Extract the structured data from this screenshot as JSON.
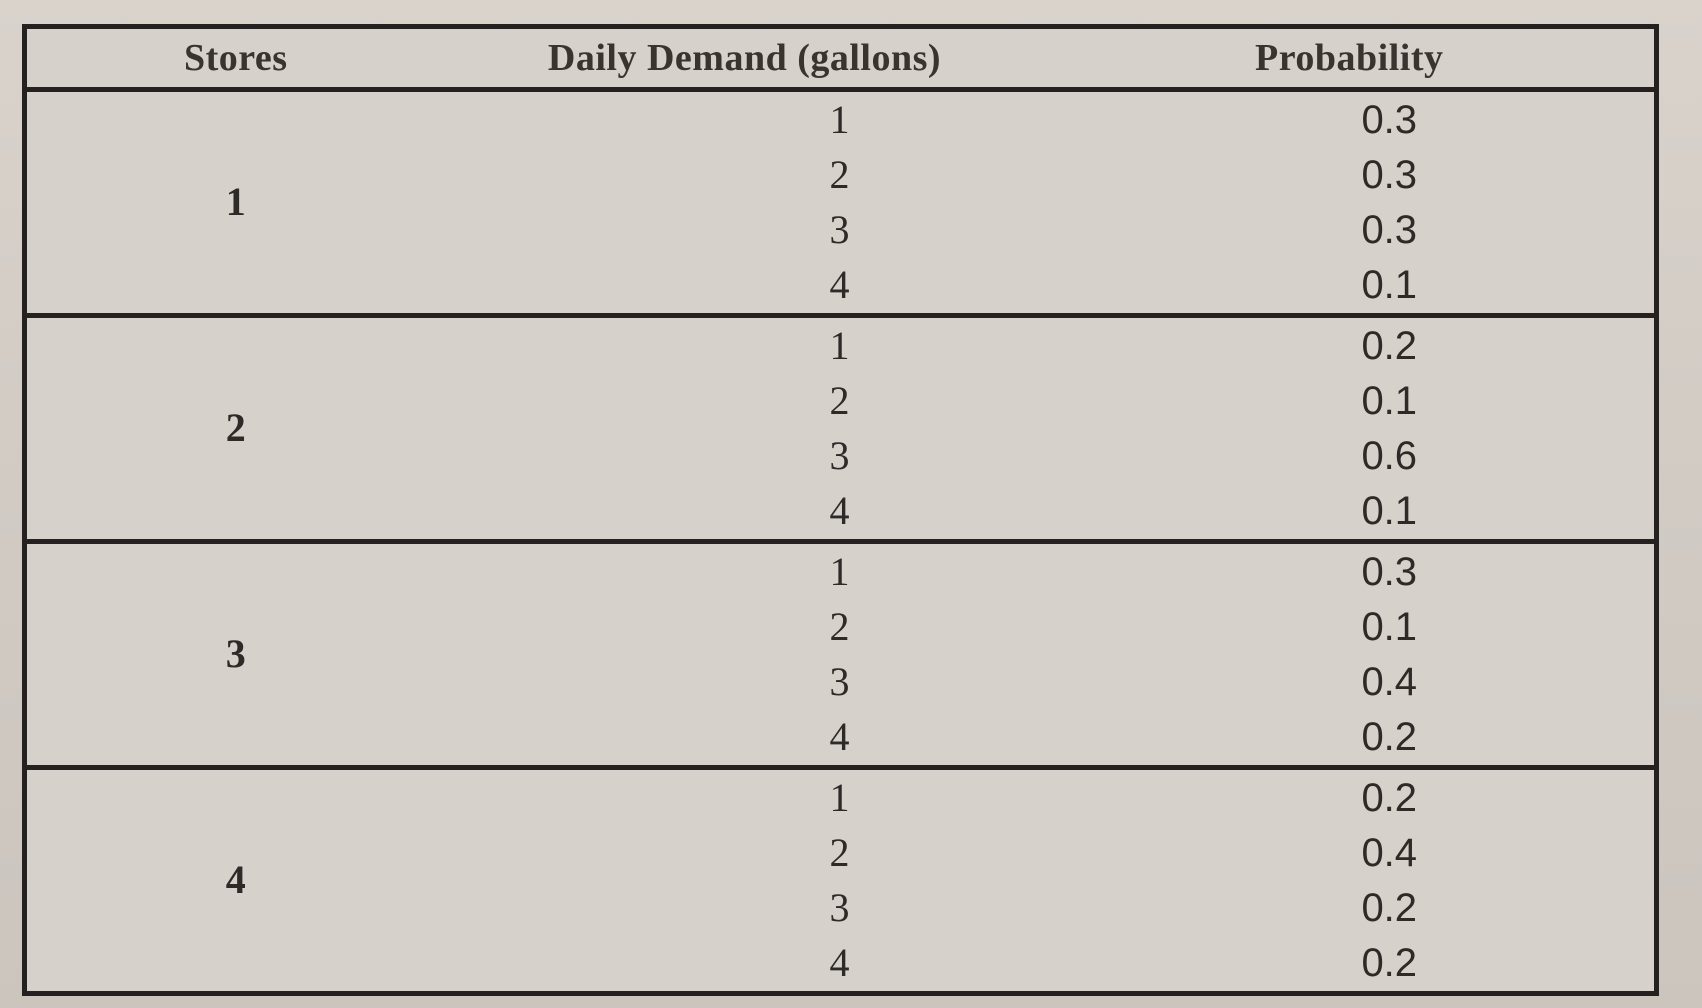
{
  "table": {
    "headers": [
      "Stores",
      "Daily Demand (gallons)",
      "Probability"
    ],
    "stores": [
      {
        "store": "1",
        "rows": [
          {
            "demand": "1",
            "probability": "0.3"
          },
          {
            "demand": "2",
            "probability": "0.3"
          },
          {
            "demand": "3",
            "probability": "0.3"
          },
          {
            "demand": "4",
            "probability": "0.1"
          }
        ]
      },
      {
        "store": "2",
        "rows": [
          {
            "demand": "1",
            "probability": "0.2"
          },
          {
            "demand": "2",
            "probability": "0.1"
          },
          {
            "demand": "3",
            "probability": "0.6"
          },
          {
            "demand": "4",
            "probability": "0.1"
          }
        ]
      },
      {
        "store": "3",
        "rows": [
          {
            "demand": "1",
            "probability": "0.3"
          },
          {
            "demand": "2",
            "probability": "0.1"
          },
          {
            "demand": "3",
            "probability": "0.4"
          },
          {
            "demand": "4",
            "probability": "0.2"
          }
        ]
      },
      {
        "store": "4",
        "rows": [
          {
            "demand": "1",
            "probability": "0.2"
          },
          {
            "demand": "2",
            "probability": "0.4"
          },
          {
            "demand": "3",
            "probability": "0.2"
          },
          {
            "demand": "4",
            "probability": "0.2"
          }
        ]
      }
    ]
  }
}
